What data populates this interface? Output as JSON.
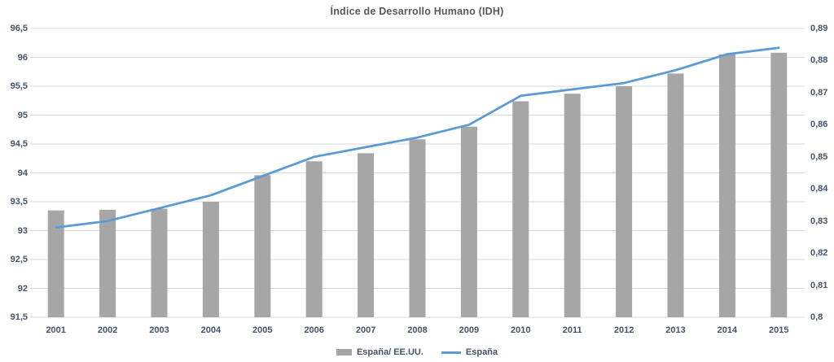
{
  "chart": {
    "title": "Índice de Desarrollo Humano (IDH)"
  },
  "legend": {
    "bars_label": "España/ EE.UU.",
    "line_label": "España"
  },
  "colors": {
    "bar": "#a6a6a6",
    "line": "#5b9bd5",
    "gridline": "#d9d9d9",
    "axis_text": "#44546a",
    "title_text": "#595959",
    "background": "#ffffff"
  },
  "chart_data": {
    "type": "bar",
    "subtype": "bar+line combo, dual axis",
    "title": "Índice de Desarrollo Humano (IDH)",
    "categories": [
      "2001",
      "2002",
      "2003",
      "2004",
      "2005",
      "2006",
      "2007",
      "2008",
      "2009",
      "2010",
      "2011",
      "2012",
      "2013",
      "2014",
      "2015"
    ],
    "series": [
      {
        "name": "España/ EE.UU.",
        "type": "bar",
        "axis": "left",
        "values": [
          93.35,
          93.36,
          93.38,
          93.5,
          93.96,
          94.2,
          94.34,
          94.58,
          94.8,
          95.24,
          95.37,
          95.5,
          95.72,
          96.05,
          96.08
        ]
      },
      {
        "name": "España",
        "type": "line",
        "axis": "right",
        "values": [
          0.828,
          0.83,
          0.834,
          0.838,
          0.844,
          0.85,
          0.853,
          0.856,
          0.86,
          0.869,
          0.871,
          0.873,
          0.877,
          0.882,
          0.884
        ]
      }
    ],
    "left_axis": {
      "min": 91.5,
      "max": 96.5,
      "step": 0.5,
      "tick_labels": [
        "96,5",
        "96",
        "95,5",
        "95",
        "94,5",
        "94",
        "93,5",
        "93",
        "92,5",
        "92",
        "91,5"
      ]
    },
    "right_axis": {
      "min": 0.8,
      "max": 0.89,
      "step": 0.01,
      "tick_labels": [
        "0,89",
        "0,88",
        "0,87",
        "0,86",
        "0,85",
        "0,84",
        "0,83",
        "0,82",
        "0,81",
        "0,8"
      ]
    },
    "grid": true,
    "legend_position": "bottom"
  }
}
